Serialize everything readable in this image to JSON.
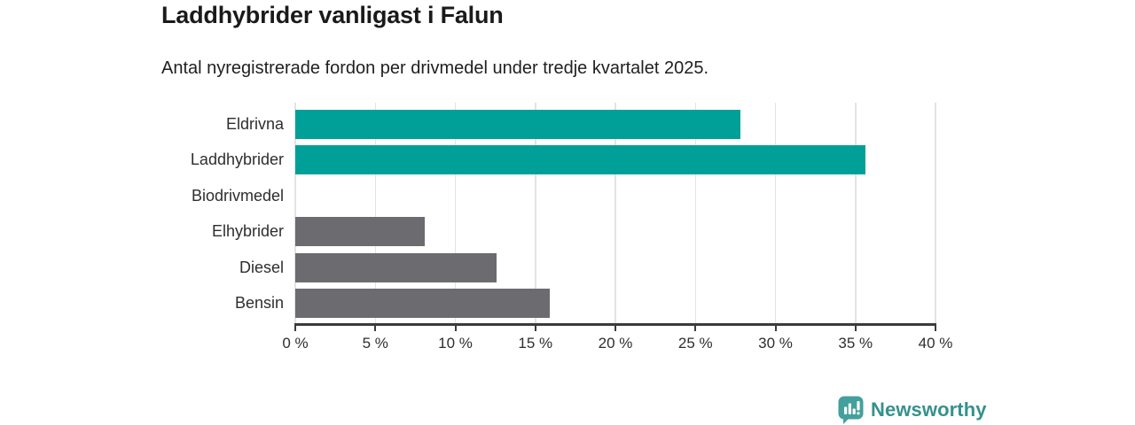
{
  "header": {
    "title": "Laddhybrider vanligast i Falun",
    "subtitle": "Antal nyregistrerade fordon per drivmedel under tredje kvartalet 2025."
  },
  "chart_data": {
    "type": "bar",
    "orientation": "horizontal",
    "title": "Laddhybrider vanligast i Falun",
    "subtitle": "Antal nyregistrerade fordon per drivmedel under tredje kvartalet 2025.",
    "categories": [
      "Eldrivna",
      "Laddhybrider",
      "Biodrivmedel",
      "Elhybrider",
      "Diesel",
      "Bensin"
    ],
    "values": [
      27.8,
      35.6,
      0,
      8.1,
      12.6,
      15.9
    ],
    "unit": "%",
    "bar_colors": [
      "#00a099",
      "#00a099",
      "#00a099",
      "#6b6b70",
      "#6b6b70",
      "#6b6b70"
    ],
    "xlabel": "",
    "ylabel": "",
    "xlim": [
      0,
      40
    ],
    "x_ticks": [
      0,
      5,
      10,
      15,
      20,
      25,
      30,
      35,
      40
    ],
    "x_tick_labels": [
      "0 %",
      "5 %",
      "10 %",
      "15 %",
      "20 %",
      "25 %",
      "30 %",
      "35 %",
      "40 %"
    ],
    "grid": "vertical",
    "legend": "none"
  },
  "branding": {
    "logo_text": "Newsworthy",
    "logo_icon": "bar-chart-bubble-icon",
    "text_color": "#35918e",
    "icon_color": "#44a09c"
  },
  "colors": {
    "teal": "#00a099",
    "gray": "#6b6b70",
    "gridline": "#e3e3e3",
    "axis": "#3b3b3b",
    "text": "#1d1d1d"
  }
}
